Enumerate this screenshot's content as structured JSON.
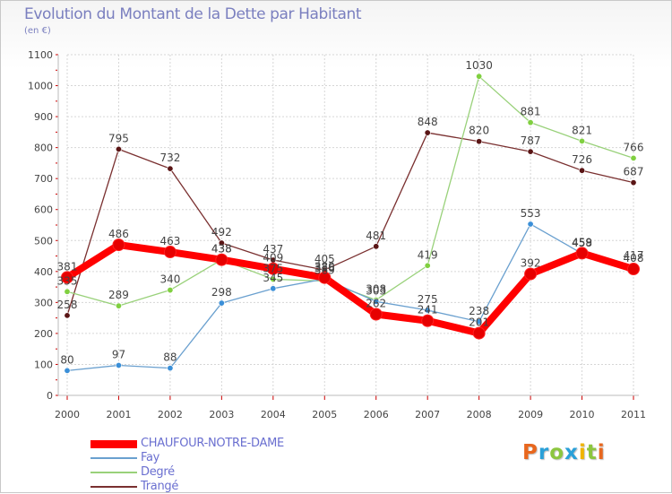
{
  "header": {
    "title": "Evolution du Montant de la Dette par Habitant",
    "unit": "(en €)"
  },
  "logo": {
    "letters": [
      "P",
      "r",
      "o",
      "x",
      "i",
      "t",
      "i"
    ],
    "colors": [
      "#e8671e",
      "#2aa0d8",
      "#8cc63f",
      "#2aa0d8",
      "#f0b400",
      "#8cc63f",
      "#e8671e"
    ]
  },
  "chart_data": {
    "type": "line",
    "title": "Evolution du Montant de la Dette par Habitant",
    "subtitle": "(en €)",
    "xlabel": "",
    "ylabel": "",
    "ylim": [
      0,
      1100
    ],
    "yticks": [
      0,
      100,
      200,
      300,
      400,
      500,
      600,
      700,
      800,
      900,
      1000,
      1100
    ],
    "grid": true,
    "legend_position": "bottom-left",
    "categories": [
      "2000",
      "2001",
      "2002",
      "2003",
      "2004",
      "2005",
      "2006",
      "2007",
      "2008",
      "2009",
      "2010",
      "2011"
    ],
    "series": [
      {
        "name": "CHAUFOUR-NOTRE-DAME",
        "color": "#ff0000",
        "marker": "#e60000",
        "thick": true,
        "values": [
          381,
          486,
          463,
          438,
          409,
          380,
          262,
          241,
          201,
          392,
          459,
          408
        ]
      },
      {
        "name": "Fay",
        "color": "#6aa0cf",
        "marker": "#3a8fd8",
        "thick": false,
        "values": [
          80,
          97,
          88,
          298,
          345,
          376,
          303,
          275,
          238,
          553,
          458,
          417
        ]
      },
      {
        "name": "Degré",
        "color": "#99d17a",
        "marker": "#80d040",
        "thick": false,
        "values": [
          335,
          289,
          340,
          438,
          375,
          369,
          308,
          419,
          1030,
          881,
          821,
          766
        ]
      },
      {
        "name": "Trangé",
        "color": "#7a3030",
        "marker": "#5a1515",
        "thick": false,
        "values": [
          258,
          795,
          732,
          492,
          437,
          405,
          481,
          848,
          820,
          787,
          726,
          687
        ]
      }
    ]
  }
}
